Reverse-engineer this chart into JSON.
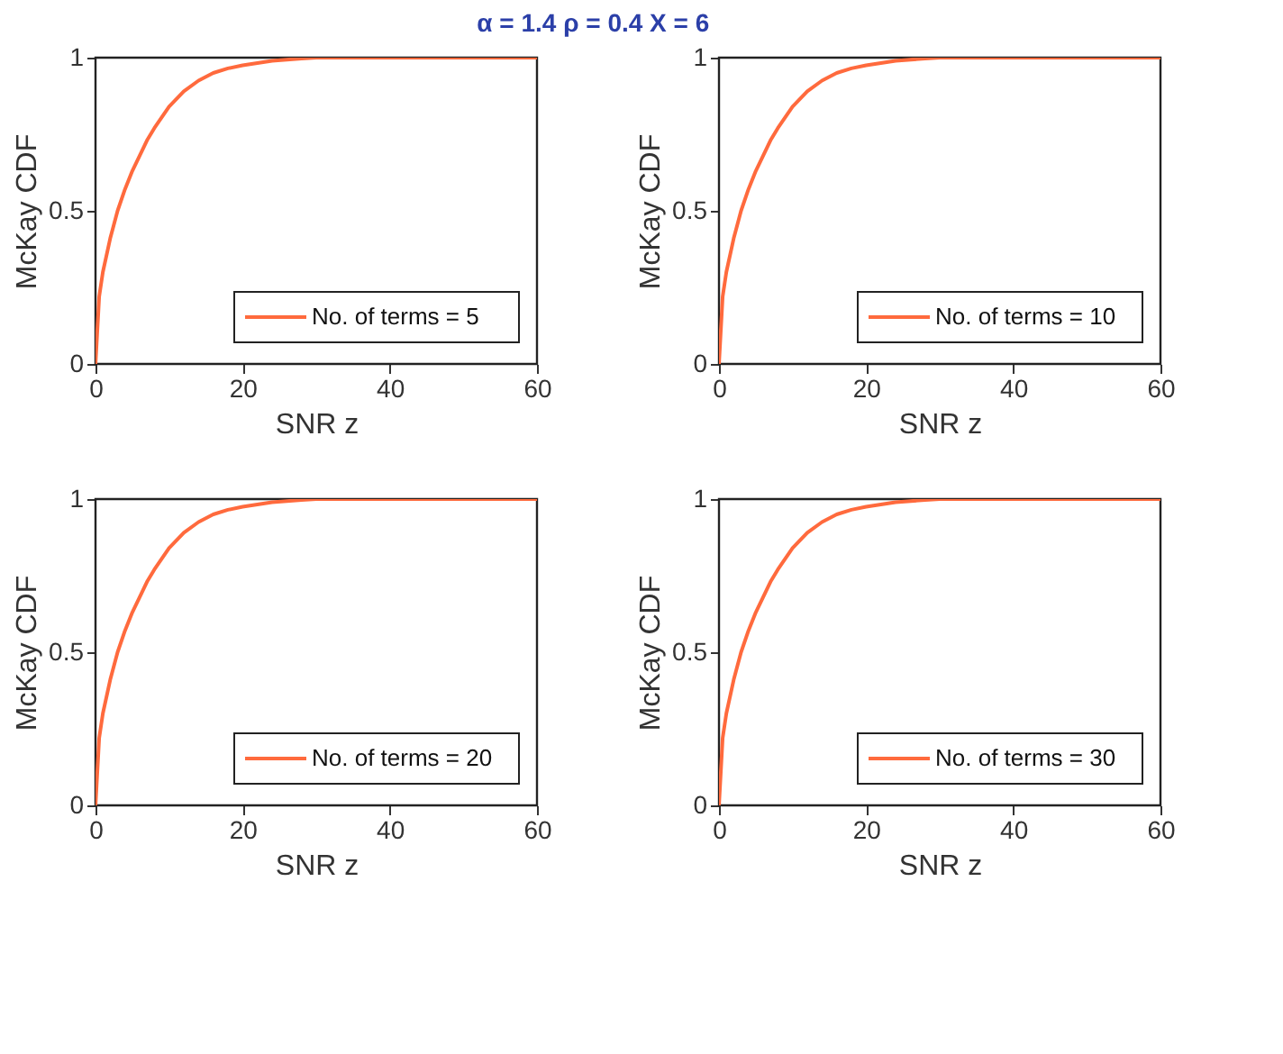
{
  "chart_data": [
    {
      "type": "line",
      "title": "α = 1.4  ρ = 0.4  X = 6",
      "xlabel": "SNR z",
      "ylabel": "McKay CDF",
      "x": [
        0,
        0.5,
        1,
        2,
        3,
        4,
        5,
        6,
        7,
        8,
        10,
        12,
        14,
        16,
        18,
        20,
        24,
        28,
        30,
        40,
        60
      ],
      "series": [
        {
          "name": "No. of terms = 5",
          "color": "#ff6a3d",
          "values": [
            0,
            0.22,
            0.3,
            0.41,
            0.5,
            0.57,
            0.63,
            0.68,
            0.73,
            0.77,
            0.84,
            0.89,
            0.925,
            0.95,
            0.965,
            0.975,
            0.99,
            0.997,
            1,
            1,
            1
          ]
        }
      ],
      "xlim": [
        0,
        60
      ],
      "xticks": [
        0,
        20,
        40,
        60
      ],
      "ylim": [
        0,
        1
      ],
      "yticks": [
        0,
        0.5,
        1
      ],
      "grid": false,
      "legend": "bottom right",
      "line_style": "solid"
    },
    {
      "type": "line",
      "xlabel": "SNR z",
      "ylabel": "McKay CDF",
      "x": [
        0,
        0.5,
        1,
        2,
        3,
        4,
        5,
        6,
        7,
        8,
        10,
        12,
        14,
        16,
        18,
        20,
        24,
        28,
        30,
        40,
        60
      ],
      "series": [
        {
          "name": "No. of terms = 10",
          "color": "#ff6a3d",
          "values": [
            0,
            0.22,
            0.3,
            0.41,
            0.5,
            0.57,
            0.63,
            0.68,
            0.73,
            0.77,
            0.84,
            0.89,
            0.925,
            0.95,
            0.965,
            0.975,
            0.99,
            0.997,
            1,
            1,
            1
          ]
        }
      ],
      "xlim": [
        0,
        60
      ],
      "xticks": [
        0,
        20,
        40,
        60
      ],
      "ylim": [
        0,
        1
      ],
      "yticks": [
        0,
        0.5,
        1
      ],
      "grid": false,
      "legend": "bottom right",
      "line_style": "solid"
    },
    {
      "type": "line",
      "xlabel": "SNR z",
      "ylabel": "McKay CDF",
      "x": [
        0,
        0.5,
        1,
        2,
        3,
        4,
        5,
        6,
        7,
        8,
        10,
        12,
        14,
        16,
        18,
        20,
        24,
        28,
        30,
        40,
        60
      ],
      "series": [
        {
          "name": "No. of terms = 20",
          "color": "#ff6a3d",
          "values": [
            0,
            0.22,
            0.3,
            0.41,
            0.5,
            0.57,
            0.63,
            0.68,
            0.73,
            0.77,
            0.84,
            0.89,
            0.925,
            0.95,
            0.965,
            0.975,
            0.99,
            0.997,
            1,
            1,
            1
          ]
        }
      ],
      "xlim": [
        0,
        60
      ],
      "xticks": [
        0,
        20,
        40,
        60
      ],
      "ylim": [
        0,
        1
      ],
      "yticks": [
        0,
        0.5,
        1
      ],
      "grid": false,
      "legend": "bottom right",
      "line_style": "solid"
    },
    {
      "type": "line",
      "xlabel": "SNR z",
      "ylabel": "McKay CDF",
      "x": [
        0,
        0.5,
        1,
        2,
        3,
        4,
        5,
        6,
        7,
        8,
        10,
        12,
        14,
        16,
        18,
        20,
        24,
        28,
        30,
        40,
        60
      ],
      "series": [
        {
          "name": "No. of terms = 30",
          "color": "#ff6a3d",
          "values": [
            0,
            0.22,
            0.3,
            0.41,
            0.5,
            0.57,
            0.63,
            0.68,
            0.73,
            0.77,
            0.84,
            0.89,
            0.925,
            0.95,
            0.965,
            0.975,
            0.99,
            0.997,
            1,
            1,
            1
          ]
        }
      ],
      "xlim": [
        0,
        60
      ],
      "xticks": [
        0,
        20,
        40,
        60
      ],
      "ylim": [
        0,
        1
      ],
      "yticks": [
        0,
        0.5,
        1
      ],
      "grid": false,
      "legend": "bottom right",
      "line_style": "solid"
    }
  ]
}
